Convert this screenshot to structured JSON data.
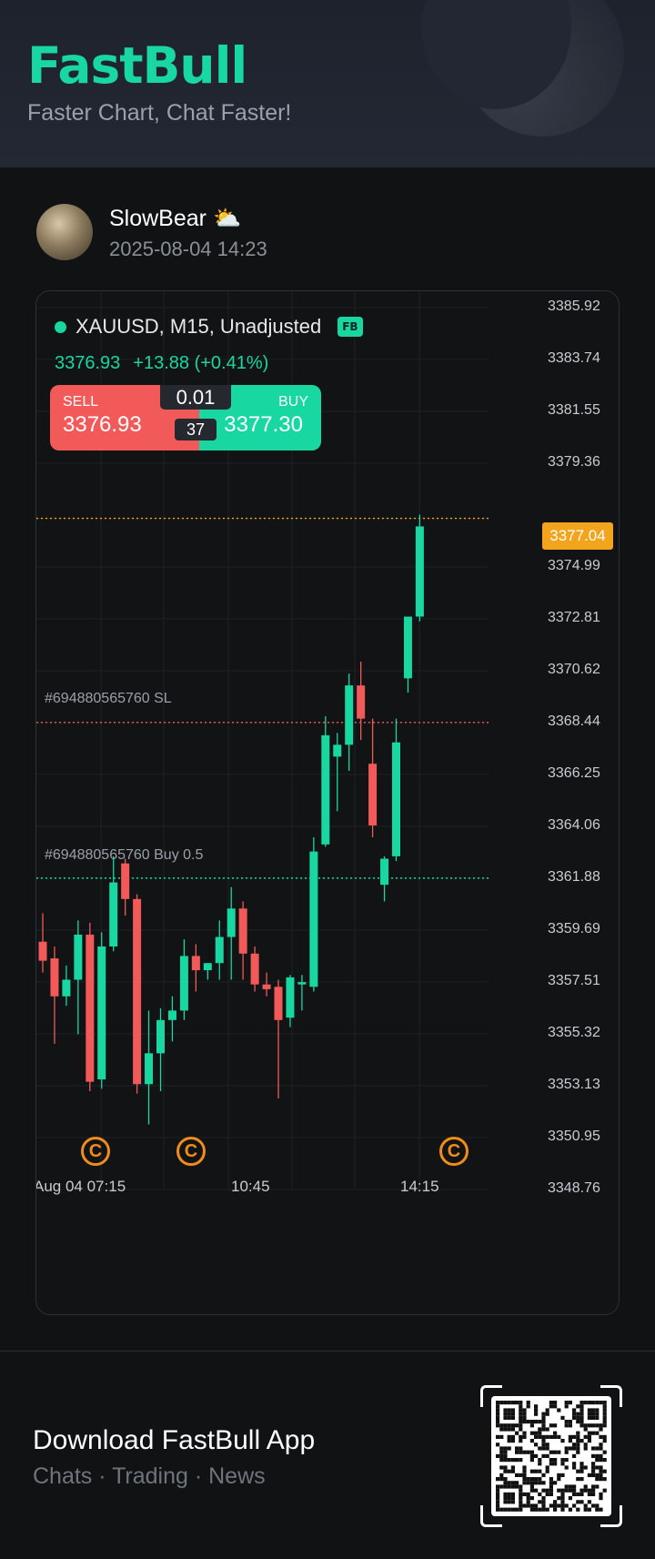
{
  "header": {
    "logo": "FastBull",
    "tagline": "Faster Chart, Chat Faster!"
  },
  "post": {
    "username": "SlowBear ⛅",
    "timestamp": "2025-08-04 14:23"
  },
  "chart": {
    "symbol_line": "XAUUSD, M15, Unadjusted",
    "badge": "FB",
    "last_price": "3376.93",
    "change": "+13.88 (+0.41%)",
    "trade": {
      "sell_label": "SELL",
      "sell_price": "3376.93",
      "buy_label": "BUY",
      "buy_price": "3377.30",
      "lot": "0.01",
      "spread": "37"
    },
    "orders": {
      "sl_label": "#694880565760 SL",
      "buy_label": "#694880565760 Buy 0.5"
    },
    "current_price_tag": "3377.04"
  },
  "chart_data": {
    "type": "candlestick",
    "title": "XAUUSD, M15, Unadjusted",
    "y_ticks": [
      "3385.92",
      "3383.74",
      "3381.55",
      "3379.36",
      "3377.04",
      "3374.99",
      "3372.81",
      "3370.62",
      "3368.44",
      "3366.25",
      "3364.06",
      "3361.88",
      "3359.69",
      "3357.51",
      "3355.32",
      "3353.13",
      "3350.95",
      "3348.76"
    ],
    "x_ticks": [
      "Aug 04 07:15",
      "10:45",
      "14:15"
    ],
    "ylim": [
      3348.76,
      3385.92
    ],
    "current_price": 3377.04,
    "sl_level": 3368.44,
    "entry_level": 3361.88,
    "colors": {
      "up": "#19d7a0",
      "down": "#f25a5a",
      "current": "#f2a41c",
      "grid": "#1e2126"
    },
    "candles": [
      {
        "o": 3359.2,
        "h": 3360.4,
        "l": 3357.9,
        "c": 3358.4
      },
      {
        "o": 3358.5,
        "h": 3359.0,
        "l": 3354.9,
        "c": 3356.9
      },
      {
        "o": 3356.9,
        "h": 3358.2,
        "l": 3356.5,
        "c": 3357.6
      },
      {
        "o": 3357.6,
        "h": 3360.1,
        "l": 3355.3,
        "c": 3359.5
      },
      {
        "o": 3359.5,
        "h": 3360.0,
        "l": 3352.9,
        "c": 3353.3
      },
      {
        "o": 3353.4,
        "h": 3359.6,
        "l": 3353.0,
        "c": 3359.0
      },
      {
        "o": 3359.0,
        "h": 3362.8,
        "l": 3358.8,
        "c": 3361.7
      },
      {
        "o": 3362.5,
        "h": 3362.7,
        "l": 3360.3,
        "c": 3361.0
      },
      {
        "o": 3361.0,
        "h": 3361.2,
        "l": 3352.8,
        "c": 3353.2
      },
      {
        "o": 3353.2,
        "h": 3356.3,
        "l": 3351.5,
        "c": 3354.5
      },
      {
        "o": 3354.5,
        "h": 3356.4,
        "l": 3352.9,
        "c": 3355.9
      },
      {
        "o": 3355.9,
        "h": 3356.9,
        "l": 3355.0,
        "c": 3356.3
      },
      {
        "o": 3356.3,
        "h": 3359.3,
        "l": 3355.9,
        "c": 3358.6
      },
      {
        "o": 3358.6,
        "h": 3359.1,
        "l": 3357.1,
        "c": 3358.0
      },
      {
        "o": 3358.0,
        "h": 3358.3,
        "l": 3357.6,
        "c": 3358.3
      },
      {
        "o": 3358.3,
        "h": 3360.1,
        "l": 3357.6,
        "c": 3359.4
      },
      {
        "o": 3359.4,
        "h": 3361.5,
        "l": 3357.6,
        "c": 3360.6
      },
      {
        "o": 3360.6,
        "h": 3360.9,
        "l": 3357.6,
        "c": 3358.7
      },
      {
        "o": 3358.7,
        "h": 3359.0,
        "l": 3357.1,
        "c": 3357.4
      },
      {
        "o": 3357.4,
        "h": 3357.9,
        "l": 3356.9,
        "c": 3357.2
      },
      {
        "o": 3357.3,
        "h": 3357.6,
        "l": 3352.6,
        "c": 3355.9
      },
      {
        "o": 3356.0,
        "h": 3357.8,
        "l": 3355.6,
        "c": 3357.7
      },
      {
        "o": 3357.4,
        "h": 3357.8,
        "l": 3356.3,
        "c": 3357.5
      },
      {
        "o": 3357.3,
        "h": 3363.6,
        "l": 3357.1,
        "c": 3363.0
      },
      {
        "o": 3363.3,
        "h": 3368.7,
        "l": 3363.2,
        "c": 3367.9
      },
      {
        "o": 3367.0,
        "h": 3368.0,
        "l": 3364.7,
        "c": 3367.5
      },
      {
        "o": 3367.5,
        "h": 3370.5,
        "l": 3366.4,
        "c": 3370.0
      },
      {
        "o": 3370.0,
        "h": 3371.0,
        "l": 3367.7,
        "c": 3368.6
      },
      {
        "o": 3366.7,
        "h": 3368.6,
        "l": 3363.6,
        "c": 3364.1
      },
      {
        "o": 3361.6,
        "h": 3362.8,
        "l": 3360.9,
        "c": 3362.7
      },
      {
        "o": 3362.8,
        "h": 3368.6,
        "l": 3362.6,
        "c": 3367.6
      },
      {
        "o": 3370.3,
        "h": 3372.9,
        "l": 3369.7,
        "c": 3372.9
      },
      {
        "o": 3372.9,
        "h": 3377.2,
        "l": 3372.7,
        "c": 3376.7
      }
    ]
  },
  "footer": {
    "title": "Download FastBull App",
    "subtitle": "Chats · Trading · News"
  }
}
